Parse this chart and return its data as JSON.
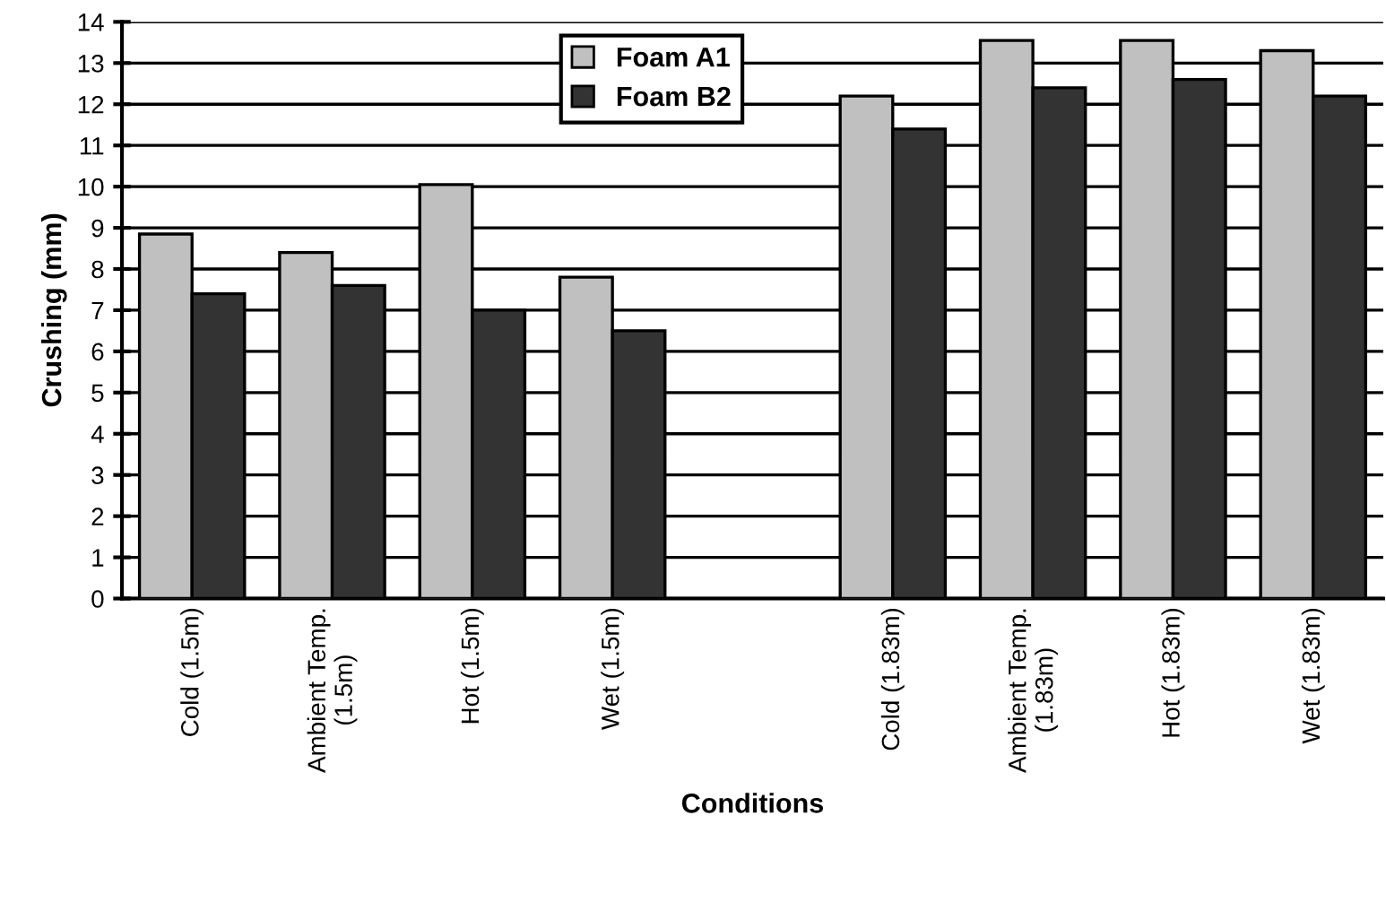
{
  "chart_data": {
    "type": "bar",
    "xlabel": "Conditions",
    "ylabel": "Crushing (mm)",
    "categories": [
      "Cold (1.5m)",
      "Ambient Temp.\n(1.5m)",
      "Hot (1.5m)",
      "Wet (1.5m)",
      null,
      "Cold (1.83m)",
      "Ambient Temp.\n(1.83m)",
      "Hot (1.83m)",
      "Wet (1.83m)"
    ],
    "series": [
      {
        "name": "Foam A1",
        "color": "#c0c0c0",
        "values": [
          8.85,
          8.4,
          10.05,
          7.8,
          null,
          12.2,
          13.55,
          13.55,
          13.3
        ]
      },
      {
        "name": "Foam B2",
        "color": "#333333",
        "values": [
          7.4,
          7.6,
          7.0,
          6.5,
          null,
          11.4,
          12.4,
          12.6,
          12.2
        ]
      }
    ],
    "ylim": [
      0,
      14
    ],
    "yticks": [
      0,
      1,
      2,
      3,
      4,
      5,
      6,
      7,
      8,
      9,
      10,
      11,
      12,
      13,
      14
    ],
    "grid": "y",
    "legend": "top"
  }
}
